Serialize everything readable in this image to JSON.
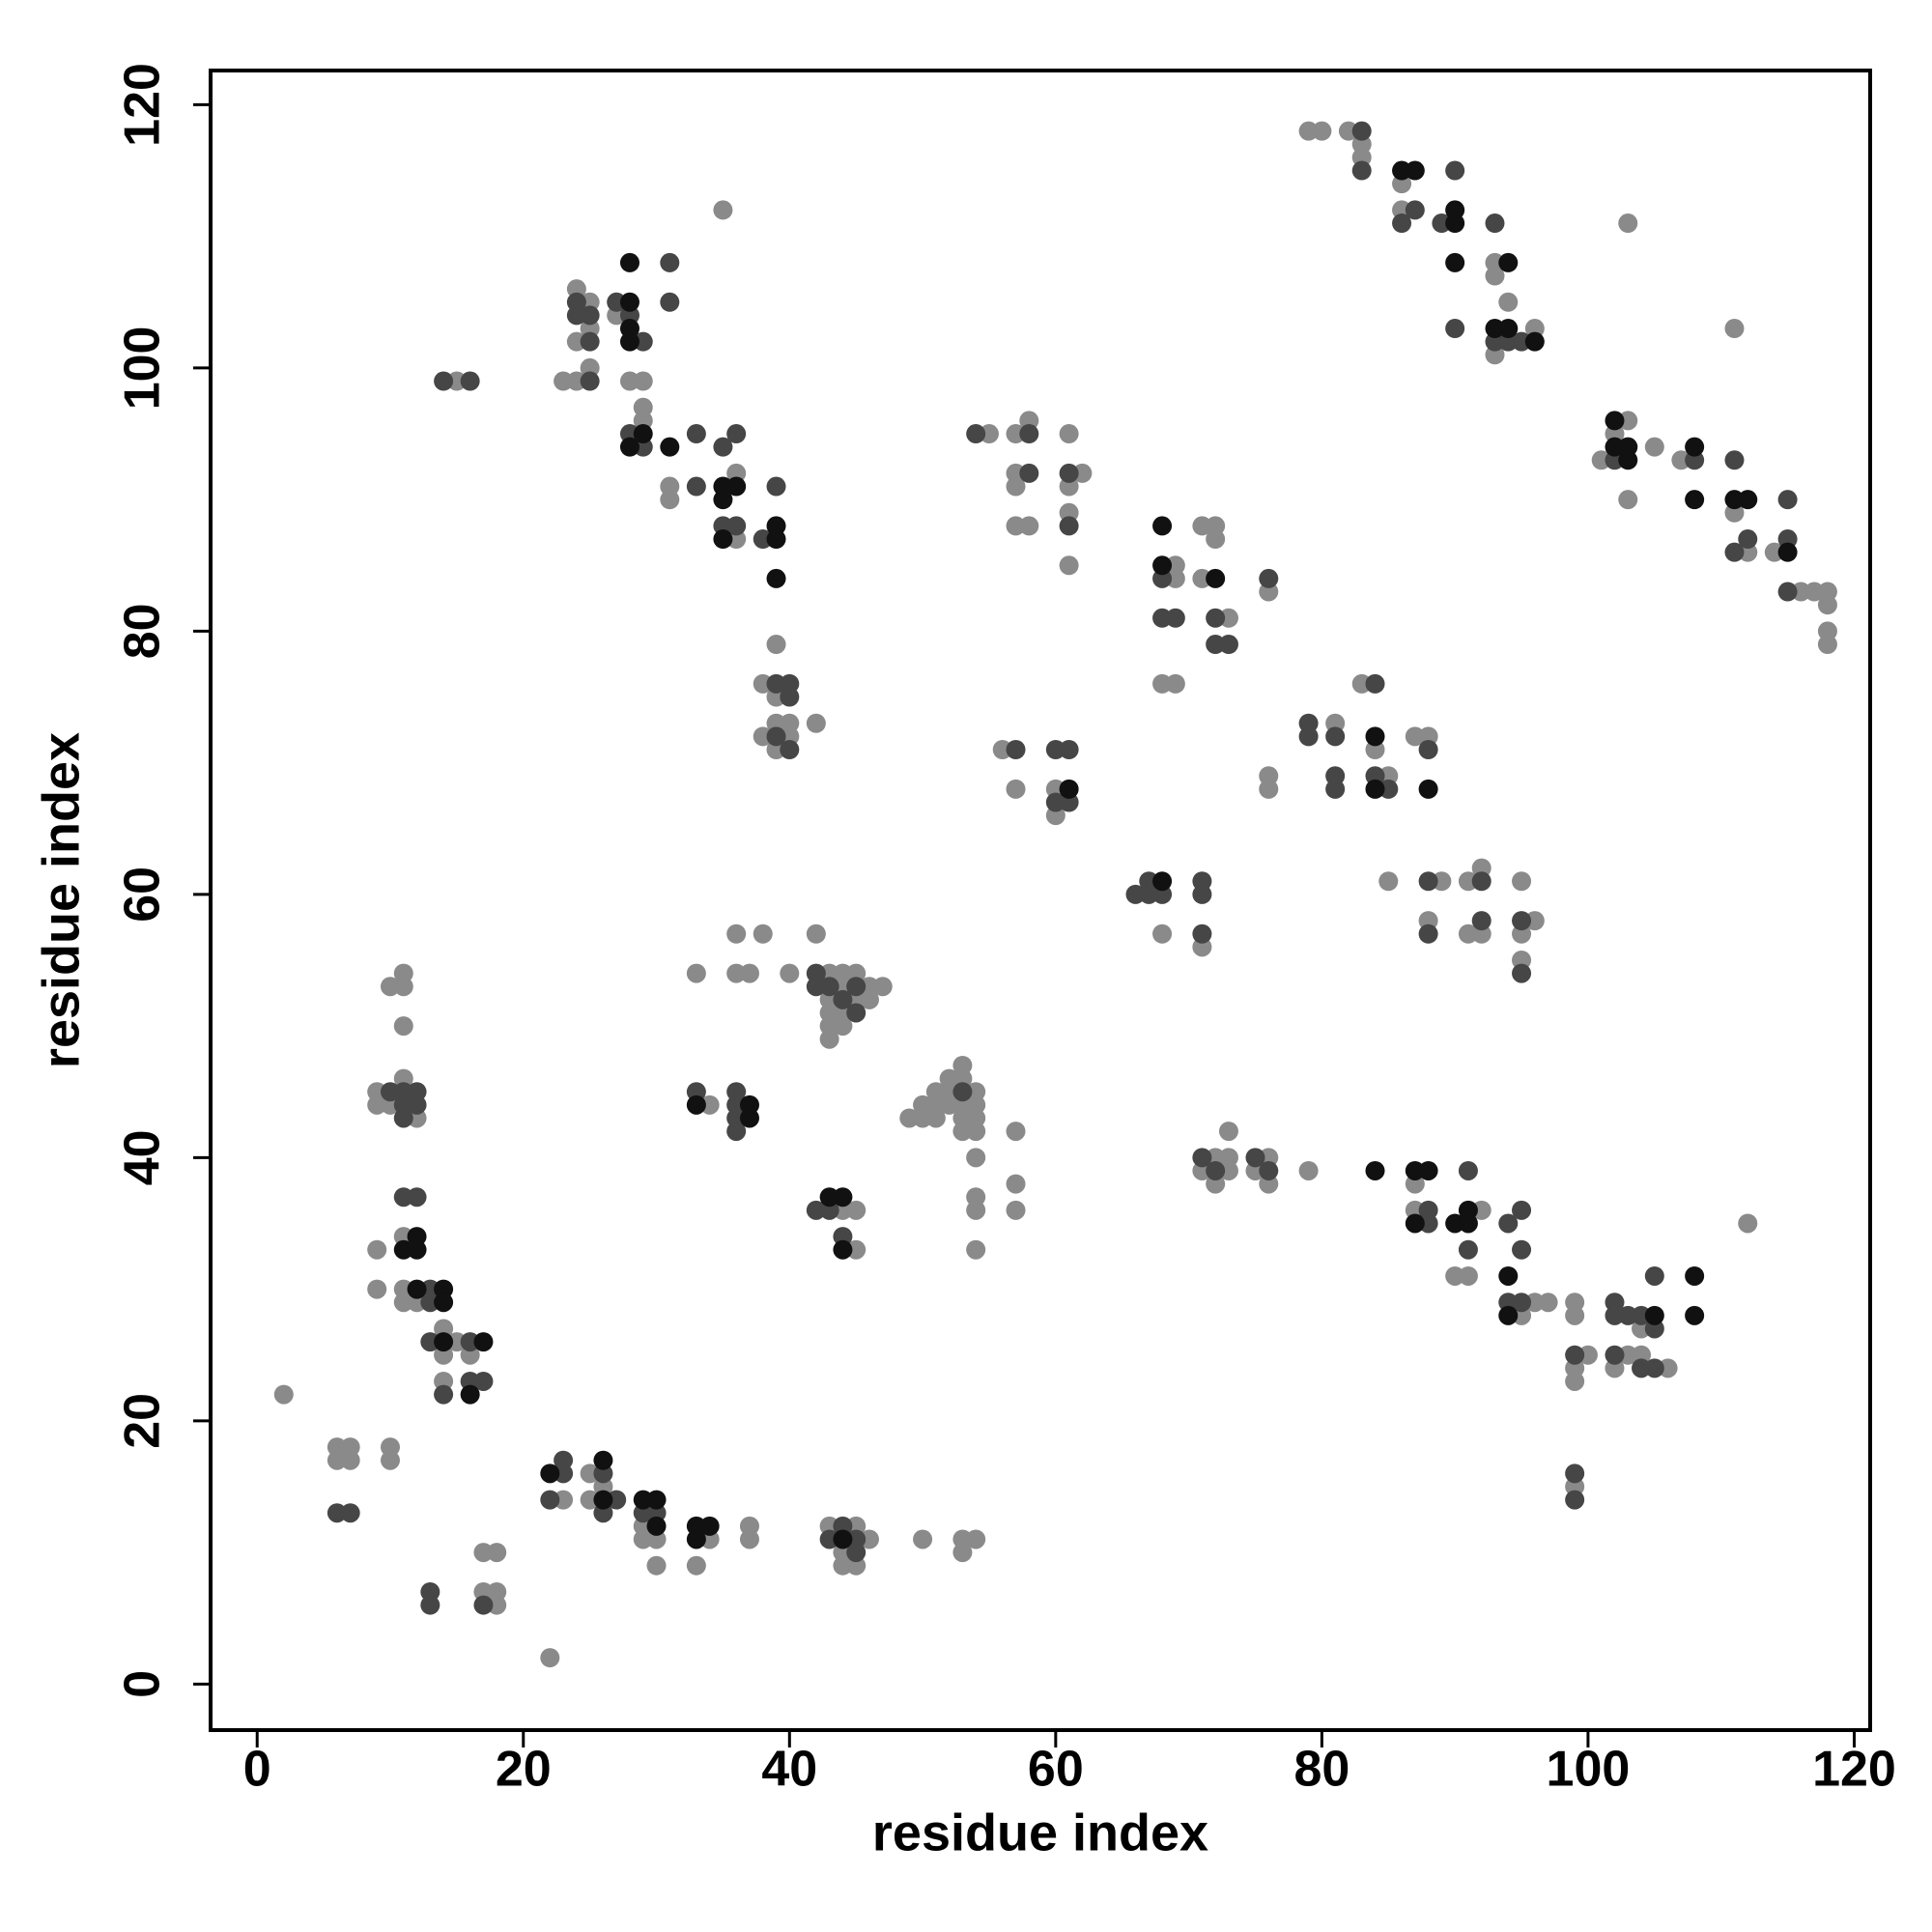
{
  "chart_data": {
    "type": "scatter",
    "x_label": "residue index",
    "y_label": "residue index",
    "xlim": [
      -3.5,
      121.2
    ],
    "ylim": [
      -3.5,
      122.6
    ],
    "xticks": [
      0,
      20,
      40,
      60,
      80,
      100,
      120
    ],
    "yticks": [
      0,
      20,
      40,
      60,
      80,
      100,
      120
    ],
    "series": [
      {
        "color": "#8a8a8a",
        "x": [
          2,
          22,
          6,
          7,
          6,
          7,
          10,
          10,
          17,
          18,
          17,
          18,
          18,
          23,
          25,
          25,
          26,
          29,
          29,
          30,
          30,
          34,
          33,
          37,
          37,
          43,
          45,
          46,
          44,
          44,
          45,
          50,
          53,
          54,
          53,
          9,
          9,
          11,
          11,
          11,
          12,
          15,
          14,
          14,
          16,
          14,
          9,
          11,
          9,
          10,
          12,
          10,
          11,
          11,
          11,
          33,
          36,
          38,
          36,
          37,
          40,
          42,
          34,
          43,
          44,
          45,
          44,
          46,
          47,
          43,
          45,
          46,
          43,
          44,
          43,
          44,
          43,
          44,
          45,
          45,
          49,
          50,
          51,
          50,
          51,
          51,
          52,
          52,
          53,
          53,
          52,
          53,
          54,
          54,
          54,
          53,
          54,
          53,
          54,
          54,
          54,
          54,
          57,
          57,
          57,
          15,
          23,
          24,
          24,
          25,
          24,
          25,
          25,
          27,
          28,
          29,
          29,
          29,
          35,
          31,
          31,
          36,
          36,
          39,
          38,
          39,
          39,
          40,
          40,
          38,
          39,
          42,
          55,
          57,
          58,
          61,
          57,
          57,
          62,
          61,
          57,
          58,
          61,
          61,
          56,
          57,
          60,
          60,
          68,
          71,
          69,
          69,
          68,
          69,
          71,
          72,
          72,
          71,
          73,
          76,
          76,
          76,
          72,
          73,
          71,
          73,
          72,
          73,
          76,
          75,
          76,
          79,
          81,
          83,
          84,
          85,
          87,
          88,
          85,
          89,
          91,
          92,
          95,
          88,
          91,
          92,
          96,
          95,
          95,
          79,
          80,
          82,
          83,
          83,
          86,
          86,
          93,
          93,
          94,
          93,
          96,
          103,
          101,
          103,
          102,
          103,
          105,
          107,
          111,
          112,
          114,
          116,
          117,
          118,
          118,
          118,
          118,
          111,
          87,
          87,
          92,
          90,
          91,
          96,
          97,
          95,
          99,
          99,
          100,
          99,
          99,
          103,
          104,
          106,
          102,
          104,
          112,
          99
        ],
        "values": [
          22,
          2,
          18,
          18,
          17,
          17,
          18,
          17,
          10,
          10,
          7,
          7,
          6,
          14,
          16,
          14,
          15,
          12,
          11,
          11,
          9,
          11,
          9,
          12,
          11,
          12,
          12,
          11,
          10,
          9,
          9,
          11,
          11,
          11,
          10,
          33,
          30,
          34,
          30,
          29,
          29,
          26,
          27,
          25,
          25,
          23,
          45,
          46,
          44,
          44,
          43,
          53,
          53,
          54,
          50,
          54,
          57,
          57,
          54,
          54,
          54,
          57,
          44,
          54,
          54,
          54,
          53,
          53,
          53,
          52,
          52,
          52,
          51,
          51,
          50,
          50,
          49,
          36,
          36,
          33,
          43,
          43,
          43,
          44,
          44,
          45,
          45,
          46,
          46,
          47,
          44,
          44,
          44,
          45,
          43,
          42,
          42,
          43,
          40,
          37,
          36,
          33,
          42,
          38,
          36,
          99,
          99,
          99,
          106,
          105,
          102,
          103,
          100,
          104,
          99,
          99,
          97,
          96,
          112,
          91,
          90,
          92,
          87,
          79,
          76,
          75,
          73,
          73,
          72,
          72,
          71,
          73,
          95,
          95,
          96,
          95,
          92,
          91,
          92,
          91,
          88,
          88,
          89,
          85,
          71,
          68,
          68,
          66,
          57,
          56,
          85,
          84,
          76,
          76,
          88,
          88,
          87,
          84,
          81,
          83,
          69,
          68,
          40,
          40,
          39,
          39,
          38,
          42,
          40,
          39,
          38,
          39,
          73,
          76,
          71,
          69,
          72,
          72,
          61,
          61,
          61,
          62,
          61,
          58,
          57,
          57,
          58,
          57,
          55,
          118,
          118,
          118,
          117,
          116,
          114,
          112,
          108,
          107,
          105,
          101,
          103,
          111,
          93,
          96,
          95,
          90,
          94,
          93,
          89,
          86,
          86,
          83,
          83,
          83,
          82,
          80,
          79,
          103,
          38,
          36,
          36,
          31,
          31,
          29,
          29,
          28,
          29,
          28,
          25,
          24,
          23,
          25,
          25,
          24,
          24,
          27,
          35,
          15
        ]
      },
      {
        "color": "#464646",
        "x": [
          6,
          7,
          13,
          13,
          17,
          23,
          23,
          22,
          26,
          26,
          27,
          29,
          30,
          43,
          45,
          44,
          45,
          11,
          12,
          13,
          13,
          13,
          16,
          16,
          17,
          14,
          10,
          11,
          12,
          11,
          12,
          11,
          33,
          36,
          36,
          36,
          36,
          42,
          42,
          43,
          45,
          44,
          45,
          42,
          43,
          44,
          53,
          14,
          16,
          25,
          24,
          24,
          25,
          25,
          27,
          28,
          29,
          31,
          31,
          28,
          29,
          33,
          33,
          35,
          36,
          35,
          36,
          39,
          38,
          39,
          40,
          40,
          39,
          40,
          54,
          58,
          58,
          61,
          61,
          57,
          60,
          61,
          60,
          61,
          66,
          67,
          67,
          68,
          71,
          71,
          71,
          68,
          68,
          69,
          72,
          72,
          73,
          76,
          71,
          72,
          75,
          76,
          79,
          79,
          81,
          84,
          81,
          84,
          81,
          85,
          88,
          88,
          92,
          88,
          92,
          95,
          95,
          83,
          83,
          87,
          86,
          89,
          90,
          90,
          93,
          93,
          94,
          95,
          102,
          108,
          111,
          112,
          111,
          115,
          115,
          115,
          91,
          88,
          95,
          88,
          94,
          91,
          95,
          94,
          95,
          99,
          102,
          102,
          103,
          104,
          102,
          104,
          105,
          105,
          105,
          99,
          99
        ],
        "values": [
          13,
          13,
          7,
          6,
          6,
          17,
          16,
          14,
          16,
          13,
          14,
          13,
          13,
          11,
          11,
          12,
          10,
          37,
          37,
          30,
          29,
          26,
          26,
          23,
          23,
          22,
          45,
          45,
          45,
          44,
          44,
          43,
          45,
          45,
          44,
          43,
          42,
          54,
          53,
          53,
          53,
          52,
          51,
          36,
          36,
          34,
          45,
          99,
          99,
          99,
          105,
          104,
          104,
          102,
          105,
          104,
          102,
          108,
          105,
          95,
          94,
          95,
          91,
          94,
          95,
          88,
          88,
          91,
          87,
          76,
          76,
          75,
          72,
          71,
          95,
          95,
          92,
          92,
          88,
          71,
          71,
          71,
          67,
          67,
          60,
          61,
          60,
          60,
          61,
          60,
          57,
          84,
          81,
          81,
          81,
          79,
          79,
          84,
          40,
          39,
          40,
          39,
          73,
          72,
          72,
          76,
          69,
          69,
          68,
          68,
          71,
          61,
          61,
          57,
          58,
          58,
          54,
          118,
          115,
          112,
          111,
          111,
          115,
          103,
          111,
          102,
          102,
          102,
          93,
          93,
          93,
          87,
          86,
          90,
          87,
          83,
          39,
          36,
          36,
          35,
          35,
          33,
          33,
          29,
          29,
          25,
          29,
          28,
          28,
          28,
          25,
          24,
          24,
          27,
          31,
          16,
          14
        ]
      },
      {
        "color": "#111111",
        "x": [
          22,
          26,
          26,
          29,
          30,
          30,
          33,
          34,
          33,
          44,
          12,
          11,
          12,
          12,
          14,
          14,
          14,
          17,
          16,
          33,
          37,
          37,
          43,
          44,
          44,
          28,
          28,
          28,
          28,
          29,
          28,
          31,
          35,
          36,
          35,
          35,
          39,
          39,
          39,
          61,
          68,
          68,
          68,
          72,
          84,
          84,
          88,
          86,
          87,
          90,
          90,
          90,
          94,
          93,
          94,
          96,
          102,
          102,
          103,
          103,
          108,
          108,
          111,
          112,
          115,
          84,
          87,
          88,
          91,
          87,
          90,
          91,
          94,
          94,
          105,
          108,
          108
        ],
        "values": [
          16,
          17,
          14,
          14,
          14,
          12,
          12,
          12,
          11,
          11,
          34,
          33,
          33,
          30,
          30,
          29,
          26,
          26,
          22,
          44,
          44,
          43,
          37,
          37,
          33,
          108,
          105,
          103,
          102,
          95,
          94,
          94,
          91,
          91,
          90,
          87,
          88,
          87,
          84,
          68,
          61,
          88,
          85,
          84,
          72,
          68,
          68,
          115,
          115,
          111,
          112,
          108,
          108,
          103,
          103,
          102,
          96,
          94,
          94,
          93,
          94,
          90,
          90,
          90,
          86,
          39,
          39,
          39,
          36,
          35,
          35,
          35,
          31,
          28,
          28,
          31,
          28
        ]
      }
    ]
  }
}
